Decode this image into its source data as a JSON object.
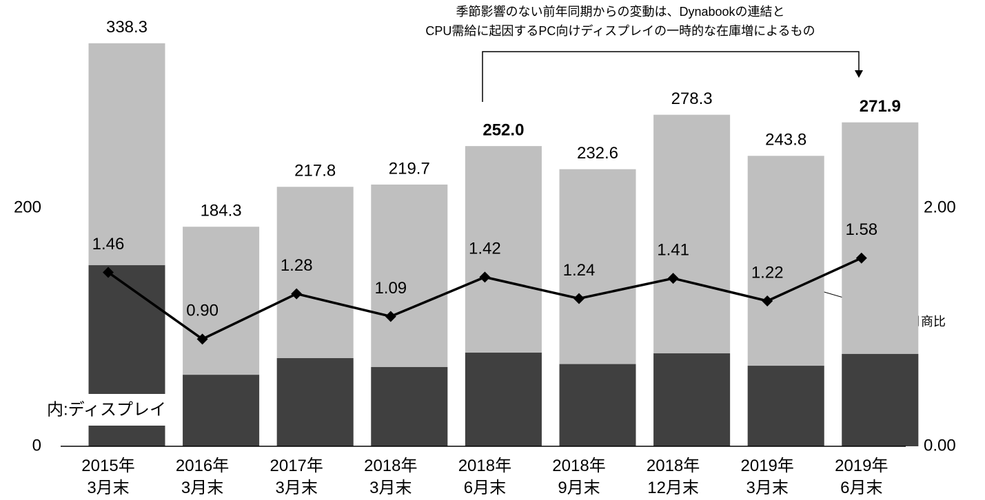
{
  "chart_data": {
    "type": "bar",
    "categories": [
      [
        "2015年",
        "3月末"
      ],
      [
        "2016年",
        "3月末"
      ],
      [
        "2017年",
        "3月末"
      ],
      [
        "2018年",
        "3月末"
      ],
      [
        "2018年",
        "6月末"
      ],
      [
        "2018年",
        "9月末"
      ],
      [
        "2018年",
        "12月末"
      ],
      [
        "2019年",
        "3月末"
      ],
      [
        "2019年",
        "6月末"
      ]
    ],
    "values": [
      338.3,
      184.3,
      217.8,
      219.7,
      252.0,
      232.6,
      278.3,
      243.8,
      271.9
    ],
    "value_labels": [
      "338.3",
      "184.3",
      "217.8",
      "219.7",
      "252.0",
      "232.6",
      "278.3",
      "243.8",
      "271.9"
    ],
    "emphasis": [
      4,
      8
    ],
    "color": "#bfbfbf",
    "series": [
      {
        "name": "内:ディスプレイ",
        "color": "#404040",
        "values": [
          152,
          60,
          74,
          66.5,
          78.6,
          69,
          78,
          67.6,
          77.5
        ]
      },
      {
        "name": "月商比",
        "axis": "y2",
        "color": "#000000",
        "values": [
          1.46,
          0.9,
          1.28,
          1.09,
          1.42,
          1.24,
          1.41,
          1.22,
          1.58
        ],
        "value_labels": [
          "1.46",
          "0.90",
          "1.28",
          "1.09",
          "1.42",
          "1.24",
          "1.41",
          "1.22",
          "1.58"
        ]
      }
    ],
    "ylim": [
      0,
      370
    ],
    "yticks": [
      0,
      200
    ],
    "y2lim": [
      0,
      3.7
    ],
    "y2ticks": [
      {
        "value": 0,
        "label": "0.00"
      },
      {
        "value": 2,
        "label": "2.00"
      }
    ],
    "annotation": [
      "季節影響のない前年同期からの変動は、Dynabookの連結と",
      "CPU需給に起因するPC向けディスプレイの一時的な在庫増によるもの"
    ]
  }
}
